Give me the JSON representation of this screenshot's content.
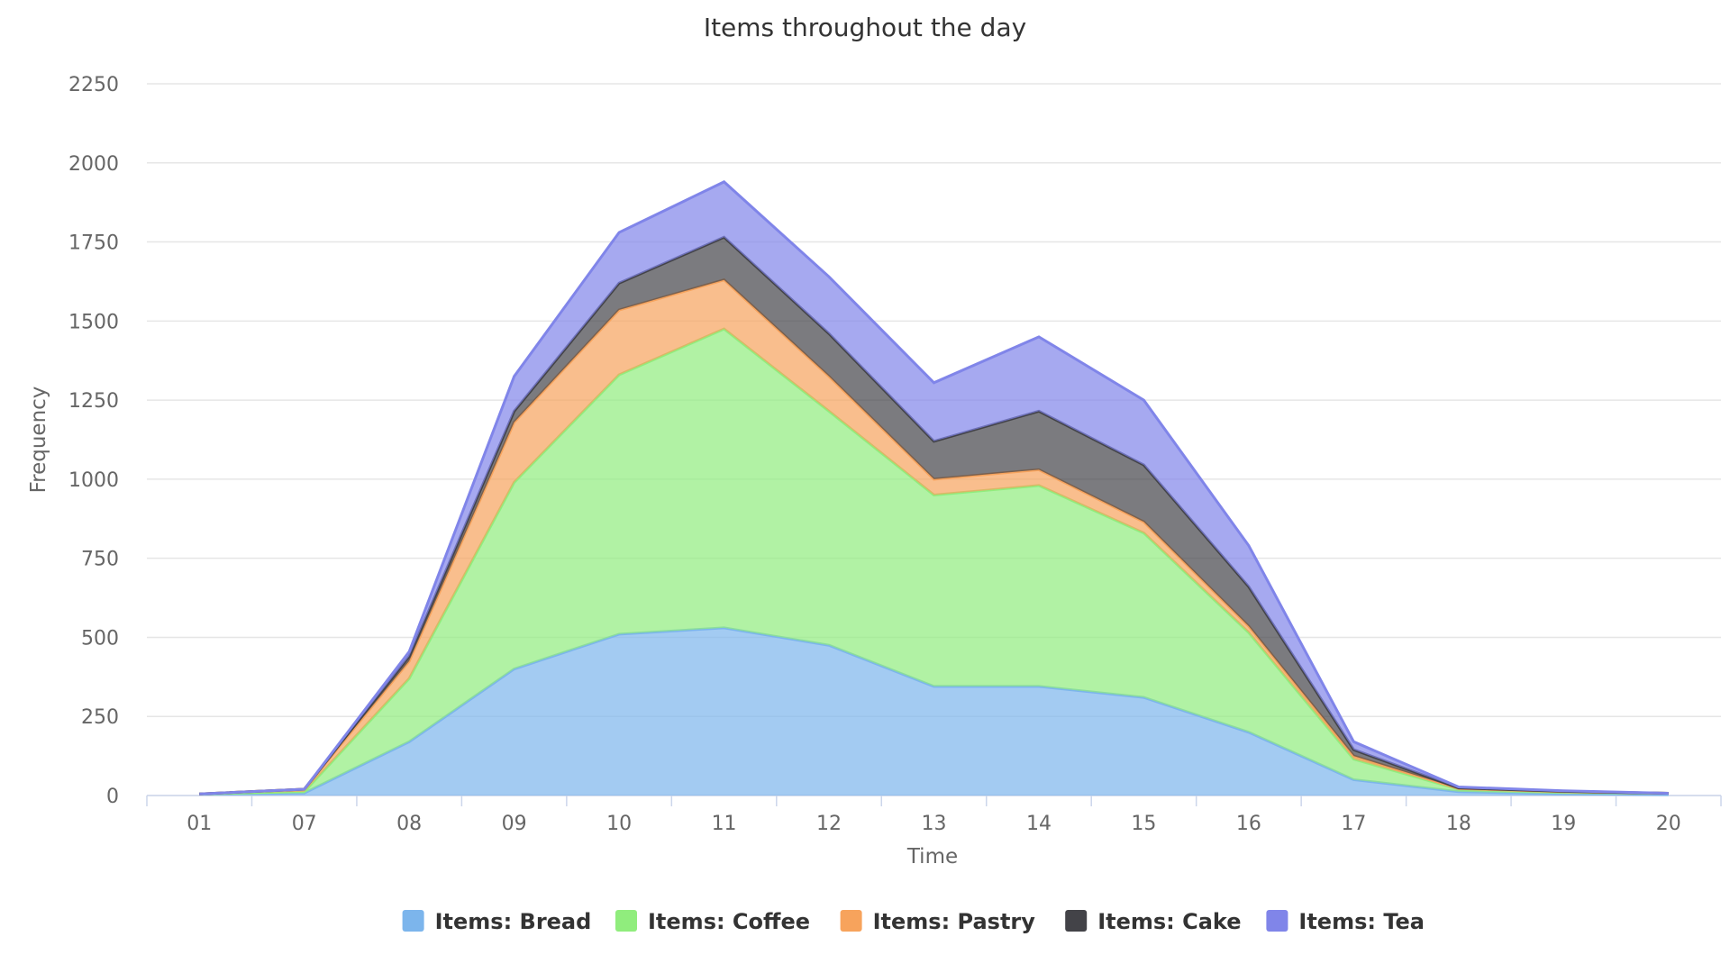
{
  "chart_data": {
    "type": "area",
    "stacked": true,
    "title": "Items throughout the day",
    "xlabel": "Time",
    "ylabel": "Frequency",
    "categories": [
      "01",
      "07",
      "08",
      "09",
      "10",
      "11",
      "12",
      "13",
      "14",
      "15",
      "16",
      "17",
      "18",
      "19",
      "20"
    ],
    "ylim": [
      0,
      2250
    ],
    "yticks": [
      0,
      250,
      500,
      750,
      1000,
      1250,
      1500,
      1750,
      2000,
      2250
    ],
    "grid": true,
    "legend_position": "bottom",
    "series": [
      {
        "name": "Items: Bread",
        "color": "#7cb5ec",
        "values": [
          5,
          8,
          170,
          400,
          510,
          530,
          475,
          345,
          345,
          310,
          200,
          50,
          12,
          5,
          3
        ]
      },
      {
        "name": "Items: Coffee",
        "color": "#90ed7d",
        "values": [
          0,
          4,
          200,
          590,
          820,
          945,
          740,
          605,
          635,
          520,
          315,
          65,
          8,
          6,
          4
        ]
      },
      {
        "name": "Items: Pastry",
        "color": "#f7a35c",
        "values": [
          0,
          8,
          55,
          190,
          205,
          155,
          110,
          50,
          50,
          35,
          20,
          10,
          2,
          1,
          0
        ]
      },
      {
        "name": "Items: Cake",
        "color": "#434348",
        "values": [
          0,
          0,
          15,
          35,
          85,
          135,
          135,
          120,
          185,
          180,
          125,
          20,
          2,
          1,
          0
        ]
      },
      {
        "name": "Items: Tea",
        "color": "#8085e9",
        "values": [
          0,
          0,
          15,
          110,
          160,
          175,
          180,
          185,
          235,
          205,
          130,
          25,
          3,
          2,
          0
        ]
      }
    ]
  }
}
